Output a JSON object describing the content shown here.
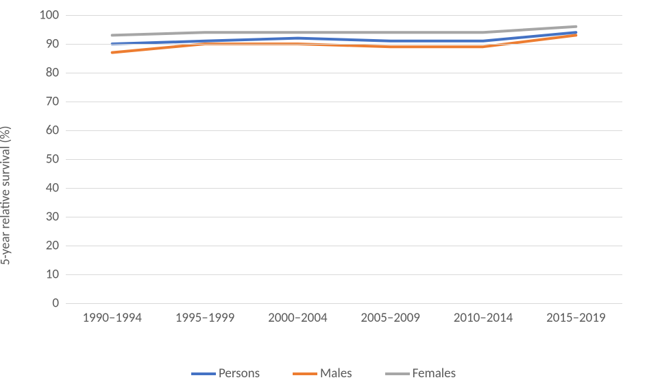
{
  "chart": {
    "type": "line",
    "ylabel": "5-year relative survival (%)",
    "ylim": [
      0,
      100
    ],
    "ytick_step": 10,
    "yticks": [
      0,
      10,
      20,
      30,
      40,
      50,
      60,
      70,
      80,
      90,
      100
    ],
    "categories": [
      "1990–1994",
      "1995–1999",
      "2000–2004",
      "2005–2009",
      "2010–2014",
      "2015–2019"
    ],
    "series": [
      {
        "name": "Persons",
        "color": "#4472c4",
        "width": 4,
        "values": [
          90,
          91,
          92,
          91,
          91,
          94
        ]
      },
      {
        "name": "Males",
        "color": "#ed7d31",
        "width": 4,
        "values": [
          87,
          90,
          90,
          89,
          89,
          93
        ]
      },
      {
        "name": "Females",
        "color": "#a6a6a6",
        "width": 4,
        "values": [
          93,
          94,
          94,
          94,
          94,
          96
        ]
      }
    ],
    "background_color": "#ffffff",
    "grid_color": "#d9d9d9",
    "label_fontsize": 19,
    "tick_fontsize": 19
  }
}
